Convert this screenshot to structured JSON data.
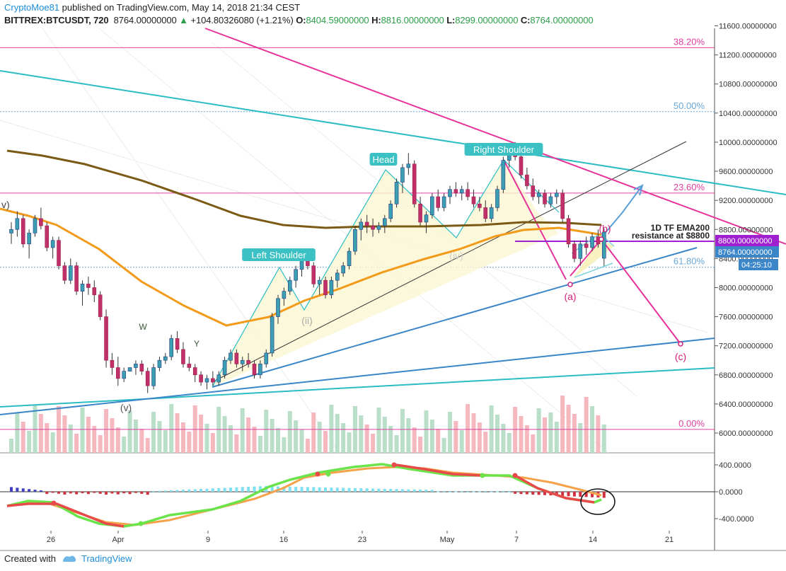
{
  "header": {
    "author": "CryptoMoe81",
    "published": "published on TradingView.com, May 14, 2018 21:34 CEST",
    "symbol": "BITTREX:BTCUSDT, 720",
    "last": "8764.00000000",
    "change_arrow": "▲",
    "change": "+104.80326080 (+1.21%)",
    "o_label": "O:",
    "o_value": "8404.59000000",
    "h_label": "H:",
    "h_value": "8816.00000000",
    "l_label": "L:",
    "l_value": "8299.00000000",
    "c_label": "C:",
    "c_value": "8764.00000000"
  },
  "footer": {
    "created_with": "Created with",
    "brand": "TradingView"
  },
  "colors": {
    "up": "#3ba0b0",
    "down": "#b0305a",
    "ema200": "#7a5a14",
    "ema50": "#f29a1a",
    "fib": "#e040a0",
    "fib50": "#6aa8d8",
    "teal": "#2bbcc4",
    "blue": "#3a86c8",
    "pink": "#e6339a",
    "black_line": "#333333",
    "vol_up": "#b9dfc8",
    "vol_down": "#f5b8bf"
  },
  "chart_data": {
    "type": "candlestick",
    "title": "BITTREX:BTCUSDT, 720",
    "price_axis_ticks": [
      "11600.00000000",
      "11200.00000000",
      "10800.00000000",
      "10400.00000000",
      "10000.00000000",
      "9600.00000000",
      "9200.00000000",
      "8800.00000000",
      "8400.00000000",
      "8000.00000000",
      "7600.00000000",
      "7200.00000000",
      "6800.00000000",
      "6400.00000000",
      "6000.00000000"
    ],
    "price_range": [
      5800,
      11850
    ],
    "time_axis_ticks": [
      "26",
      "Apr",
      "9",
      "16",
      "23",
      "May",
      "7",
      "14",
      "21"
    ],
    "price_labels": [
      {
        "text": "8800.00000000",
        "color": "#a020d0",
        "value": 8800
      },
      {
        "text": "8764.00000000",
        "color": "#3a86c8",
        "value": 8764
      },
      {
        "text": "04:25:10",
        "color": "#3a86c8",
        "value": 8660
      }
    ],
    "fib_levels": [
      {
        "label": "38.20%",
        "price": 11300,
        "color": "#e040a0"
      },
      {
        "label": "50.00%",
        "price": 10420,
        "color": "#6aa8d8"
      },
      {
        "label": "23.60%",
        "price": 9300,
        "color": "#e040a0"
      },
      {
        "label": "61.80%",
        "price": 8280,
        "color": "#6aa8d8"
      },
      {
        "label": "0.00%",
        "price": 6050,
        "color": "#e040a0"
      }
    ],
    "annotations": {
      "head": "Head",
      "left_shoulder": "Left Shoulder",
      "right_shoulder": "Right Shoulder",
      "ema_note_1": "1D TF EMA200",
      "ema_note_2": "resistance at $8800",
      "wave_a": "(a)",
      "wave_b": "(b)",
      "wave_c": "(c)",
      "wave_ii": "(ii)",
      "wave_iv": "(iv)",
      "wave_v": "(v)",
      "w": "W",
      "y": "Y",
      "v_left": "v)"
    },
    "candles": [
      [
        8750,
        8900,
        8600,
        8800
      ],
      [
        8800,
        9050,
        8700,
        8950
      ],
      [
        8950,
        9000,
        8550,
        8600
      ],
      [
        8600,
        8800,
        8400,
        8750
      ],
      [
        8750,
        9000,
        8700,
        8950
      ],
      [
        8950,
        9100,
        8800,
        8850
      ],
      [
        8850,
        8900,
        8500,
        8550
      ],
      [
        8550,
        8700,
        8400,
        8650
      ],
      [
        8650,
        8700,
        8250,
        8300
      ],
      [
        8300,
        8350,
        8050,
        8100
      ],
      [
        8100,
        8400,
        8050,
        8300
      ],
      [
        8300,
        8350,
        7900,
        7950
      ],
      [
        7950,
        8100,
        7750,
        8050
      ],
      [
        8050,
        8150,
        7900,
        8000
      ],
      [
        8000,
        8100,
        7800,
        7900
      ],
      [
        7900,
        7950,
        7550,
        7600
      ],
      [
        7600,
        7700,
        6900,
        7000
      ],
      [
        7000,
        7100,
        6800,
        6900
      ],
      [
        6900,
        7050,
        6650,
        6750
      ],
      [
        6750,
        6900,
        6700,
        6850
      ],
      [
        6850,
        6900,
        6850,
        6900
      ],
      [
        6900,
        7000,
        6800,
        6950
      ],
      [
        6950,
        7000,
        6800,
        6850
      ],
      [
        6850,
        6900,
        6550,
        6650
      ],
      [
        6650,
        6950,
        6600,
        6900
      ],
      [
        6900,
        7050,
        6850,
        7000
      ],
      [
        7000,
        7100,
        6950,
        7050
      ],
      [
        7050,
        7350,
        7000,
        7300
      ],
      [
        7300,
        7400,
        7100,
        7150
      ],
      [
        7150,
        7250,
        6900,
        6950
      ],
      [
        6950,
        7050,
        6850,
        6900
      ],
      [
        6900,
        6950,
        6700,
        6800
      ],
      [
        6800,
        6850,
        6650,
        6700
      ],
      [
        6700,
        6800,
        6600,
        6750
      ],
      [
        6750,
        6850,
        6650,
        6700
      ],
      [
        6700,
        6850,
        6650,
        6800
      ],
      [
        6800,
        7050,
        6750,
        7000
      ],
      [
        7000,
        7150,
        6950,
        7100
      ],
      [
        7100,
        7150,
        6900,
        6950
      ],
      [
        6950,
        7050,
        6850,
        7000
      ],
      [
        7000,
        7100,
        6900,
        6950
      ],
      [
        6950,
        7000,
        6750,
        6800
      ],
      [
        6800,
        7000,
        6750,
        6950
      ],
      [
        6950,
        7150,
        6900,
        7100
      ],
      [
        7100,
        7650,
        7050,
        7600
      ],
      [
        7600,
        7900,
        7500,
        7850
      ],
      [
        7850,
        8000,
        7750,
        7950
      ],
      [
        7950,
        8150,
        7900,
        8100
      ],
      [
        8100,
        8300,
        8000,
        8250
      ],
      [
        8250,
        8450,
        8150,
        8400
      ],
      [
        8400,
        8450,
        8250,
        8300
      ],
      [
        8300,
        8350,
        8000,
        8050
      ],
      [
        8050,
        8150,
        7900,
        8100
      ],
      [
        8100,
        8150,
        7850,
        7900
      ],
      [
        7900,
        8150,
        7850,
        8100
      ],
      [
        8100,
        8250,
        8000,
        8200
      ],
      [
        8200,
        8350,
        8150,
        8300
      ],
      [
        8300,
        8550,
        8250,
        8500
      ],
      [
        8500,
        8850,
        8450,
        8800
      ],
      [
        8800,
        8950,
        8650,
        8900
      ],
      [
        8900,
        9000,
        8750,
        8850
      ],
      [
        8850,
        8950,
        8700,
        8800
      ],
      [
        8800,
        8900,
        8750,
        8850
      ],
      [
        8850,
        9000,
        8750,
        8950
      ],
      [
        8950,
        9200,
        8900,
        9150
      ],
      [
        9150,
        9500,
        9100,
        9450
      ],
      [
        9450,
        9700,
        9300,
        9650
      ],
      [
        9650,
        9850,
        9550,
        9700
      ],
      [
        9700,
        9750,
        9100,
        9150
      ],
      [
        9150,
        9250,
        8850,
        8900
      ],
      [
        8900,
        9050,
        8750,
        9000
      ],
      [
        9000,
        9300,
        8950,
        9250
      ],
      [
        9250,
        9350,
        9050,
        9100
      ],
      [
        9100,
        9300,
        9050,
        9250
      ],
      [
        9250,
        9400,
        9150,
        9350
      ],
      [
        9350,
        9450,
        9250,
        9300
      ],
      [
        9300,
        9400,
        9200,
        9350
      ],
      [
        9350,
        9450,
        9200,
        9250
      ],
      [
        9250,
        9350,
        9100,
        9150
      ],
      [
        9150,
        9250,
        9050,
        9100
      ],
      [
        9100,
        9200,
        8900,
        8950
      ],
      [
        8950,
        9150,
        8900,
        9100
      ],
      [
        9100,
        9400,
        9050,
        9350
      ],
      [
        9350,
        9800,
        9300,
        9750
      ],
      [
        9750,
        9950,
        9650,
        9900
      ],
      [
        9900,
        10000,
        9750,
        9800
      ],
      [
        9800,
        9850,
        9500,
        9550
      ],
      [
        9550,
        9650,
        9350,
        9400
      ],
      [
        9400,
        9500,
        9200,
        9250
      ],
      [
        9250,
        9350,
        9150,
        9300
      ],
      [
        9300,
        9350,
        9100,
        9150
      ],
      [
        9150,
        9300,
        9100,
        9250
      ],
      [
        9250,
        9350,
        9150,
        9300
      ],
      [
        9300,
        9350,
        8900,
        8950
      ],
      [
        8950,
        9000,
        8550,
        8600
      ],
      [
        8600,
        8650,
        8350,
        8400
      ],
      [
        8400,
        8650,
        8300,
        8600
      ],
      [
        8600,
        8700,
        8450,
        8550
      ],
      [
        8550,
        8750,
        8500,
        8700
      ],
      [
        8700,
        8800,
        8550,
        8600
      ],
      [
        8404,
        8816,
        8299,
        8764
      ]
    ]
  }
}
